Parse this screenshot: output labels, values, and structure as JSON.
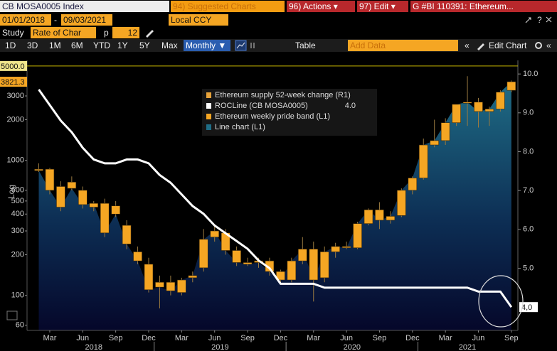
{
  "toolbar": {
    "security": "CB MOSA0005 Index",
    "menu": [
      "94) Suggested Charts",
      "96) Actions ▾",
      "97) Edit ▾",
      "G #BI 110391: Ethereum..."
    ],
    "start_date": "01/01/2018",
    "date_sep": "-",
    "end_date": "09/03/2021",
    "currency": "Local CCY",
    "study_label": "Study",
    "study": "Rate of Char",
    "param_label": "p",
    "param": "12",
    "periods": [
      "1D",
      "3D",
      "1M",
      "6M",
      "YTD",
      "1Y",
      "5Y",
      "Max"
    ],
    "frequency": "Monthly ▼",
    "table": "Table",
    "add_data": "Add Data",
    "edit_chart": "Edit Chart"
  },
  "chart_data": {
    "type": "candlestick",
    "log_y": true,
    "y_axis_label": "Log",
    "categories": [
      null,
      "Mar",
      null,
      null,
      "Jun",
      null,
      null,
      "Sep",
      null,
      null,
      "Dec",
      null,
      null,
      "Mar",
      null,
      null,
      "Jun",
      null,
      null,
      "Sep",
      null,
      null,
      "Dec",
      null,
      null,
      "Mar",
      null,
      null,
      "Jun",
      null,
      null,
      "Sep",
      null,
      null,
      "Dec",
      null,
      null,
      "Mar",
      null,
      null,
      "Jun",
      null,
      null,
      "Sep"
    ],
    "x_groups": [
      {
        "label": "2018",
        "start": 0,
        "end": 10
      },
      {
        "label": "2019",
        "start": 11,
        "end": 22
      },
      {
        "label": "2020",
        "start": 23,
        "end": 34
      },
      {
        "label": "2021",
        "start": 35,
        "end": 43
      }
    ],
    "ylim": [
      55,
      5500
    ],
    "yticks": [
      60,
      100,
      200,
      300,
      400,
      500,
      600,
      1000,
      2000,
      3000
    ],
    "y2lim": [
      3.4,
      10.35
    ],
    "y2ticks": [
      {
        "value": 5,
        "label": "5.0"
      },
      {
        "value": 6,
        "label": "6.0"
      },
      {
        "value": 7,
        "label": "7.0"
      },
      {
        "value": 8,
        "label": "8.0"
      },
      {
        "value": 9,
        "label": "9.0"
      },
      {
        "value": 10,
        "label": "10.0"
      }
    ],
    "ref_line": {
      "value": 5000,
      "label": "5000.0",
      "color": "#c9b800"
    },
    "last_price": 3821.3,
    "candles": {
      "name": "Ethereum weekly pride band (L1)",
      "color": "#f5a623",
      "open": [
        860,
        860,
        640,
        690,
        600,
        450,
        480,
        460,
        330,
        210,
        170,
        125,
        125,
        105,
        135,
        160,
        270,
        290,
        215,
        175,
        180,
        180,
        150,
        130,
        180,
        220,
        135,
        210,
        230,
        225,
        340,
        430,
        360,
        390,
        600,
        740,
        1300,
        1400,
        1900,
        2700,
        2700,
        2300,
        2400,
        3300
      ],
      "high": [
        950,
        880,
        700,
        760,
        640,
        500,
        520,
        500,
        360,
        230,
        190,
        140,
        140,
        135,
        150,
        310,
        330,
        310,
        230,
        190,
        190,
        190,
        155,
        190,
        270,
        250,
        230,
        245,
        250,
        350,
        440,
        490,
        420,
        620,
        760,
        1450,
        2000,
        2050,
        2600,
        4200,
        2900,
        2500,
        3300,
        3900
      ],
      "low": [
        820,
        560,
        420,
        600,
        440,
        420,
        270,
        380,
        220,
        170,
        105,
        80,
        100,
        100,
        125,
        150,
        250,
        200,
        165,
        165,
        160,
        140,
        120,
        125,
        170,
        90,
        125,
        190,
        220,
        220,
        330,
        310,
        340,
        380,
        560,
        720,
        1250,
        1300,
        1800,
        1800,
        1750,
        1800,
        2300,
        3200
      ],
      "close": [
        840,
        600,
        450,
        620,
        470,
        480,
        290,
        400,
        240,
        180,
        110,
        115,
        108,
        130,
        140,
        260,
        300,
        215,
        175,
        170,
        175,
        150,
        130,
        180,
        220,
        130,
        210,
        230,
        225,
        340,
        430,
        360,
        385,
        600,
        740,
        1300,
        1400,
        1900,
        2600,
        2700,
        2300,
        2400,
        3200,
        3821.3
      ]
    },
    "area": {
      "name": "Line chart (L1)",
      "color": "#1f6d86"
    },
    "series": [
      {
        "name": "Ethereum supply 52-week change (R1)",
        "color": "#e8a33a"
      },
      {
        "name": "ROCLine (CB MOSA0005)",
        "color": "#ffffff",
        "axis": "y2",
        "legend_value": {
          "value": 4,
          "label": "4.0"
        },
        "last_label": {
          "value": 4,
          "label": "4,0"
        },
        "values": [
          9.6,
          9.2,
          8.8,
          8.5,
          8.1,
          7.8,
          7.7,
          7.7,
          7.8,
          7.8,
          7.7,
          7.4,
          7.2,
          6.9,
          6.6,
          6.4,
          6.1,
          5.9,
          5.7,
          5.5,
          5.2,
          5.0,
          4.6,
          4.6,
          4.6,
          4.6,
          4.5,
          4.5,
          4.5,
          4.5,
          4.5,
          4.5,
          4.5,
          4.5,
          4.5,
          4.5,
          4.5,
          4.5,
          4.5,
          4.5,
          4.4,
          4.4,
          4.4,
          4.0
        ]
      }
    ]
  }
}
